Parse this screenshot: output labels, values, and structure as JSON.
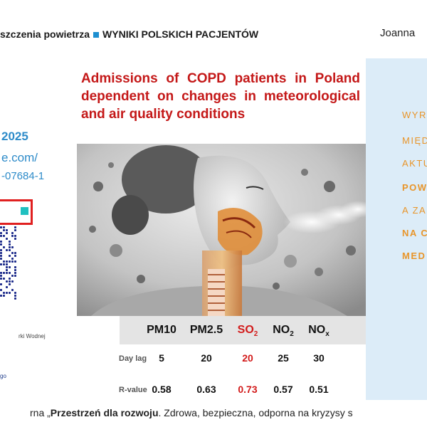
{
  "header": {
    "title_part": "szczenia powietrza",
    "title_results": "WYNIKI POLSKICH PACJENTÓW",
    "author": "Joanna"
  },
  "left": {
    "year": "2025",
    "url_line1": "e.com/",
    "url_line2": "-07684-1",
    "sponsor_line1": "rki Wodnej",
    "sponsor_line2": "go"
  },
  "slide": {
    "title": "Admissions of COPD patients in Poland dependent on changes in meteorological and air quality conditions",
    "table": {
      "columns": [
        {
          "label": "PM10",
          "sub": "",
          "highlight": false
        },
        {
          "label": "PM2.5",
          "sub": "",
          "highlight": false
        },
        {
          "label": "SO",
          "sub": "2",
          "highlight": true
        },
        {
          "label": "NO",
          "sub": "2",
          "highlight": false
        },
        {
          "label": "NO",
          "sub": "x",
          "highlight": false
        }
      ],
      "rows": [
        {
          "label": "Day lag",
          "values": [
            "5",
            "20",
            "20",
            "25",
            "30"
          ]
        },
        {
          "label": "R-value",
          "values": [
            "0.58",
            "0.63",
            "0.73",
            "0.57",
            "0.51"
          ]
        }
      ]
    }
  },
  "right": {
    "lines": [
      {
        "text": "WYR",
        "bold": false
      },
      {
        "text": "MIĘD",
        "bold": false
      },
      {
        "text": "AKTU",
        "bold": false
      },
      {
        "text": "POW",
        "bold": true
      },
      {
        "text": "A ZA",
        "bold": false
      },
      {
        "text": "NA C",
        "bold": true
      },
      {
        "text": "MED",
        "bold": true
      }
    ]
  },
  "footer": {
    "prefix": "rna „",
    "bold": "Przestrzeń dla rozwoju",
    "rest": ". Zdrowa, bezpieczna, odporna na kryzysy s"
  },
  "colors": {
    "title_red": "#c41818",
    "accent_blue": "#2d8bc9",
    "right_panel_bg": "#dcecf8",
    "right_text_orange": "#e8952a",
    "highlight_red": "#d21a1a"
  },
  "icons": [
    "qr-code",
    "blue-square-bullet"
  ]
}
